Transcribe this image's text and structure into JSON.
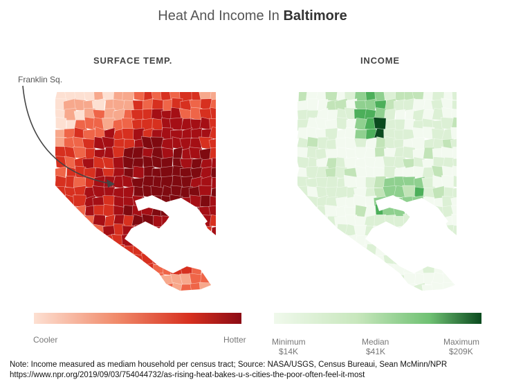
{
  "title": {
    "prefix": "Heat And Income In ",
    "city": "Baltimore"
  },
  "panels": {
    "temperature": {
      "title": "SURFACE TEMP."
    },
    "income": {
      "title": "INCOME"
    }
  },
  "annotation": {
    "label": "Franklin Sq."
  },
  "legend": {
    "temperature": {
      "low": "Cooler",
      "high": "Hotter"
    },
    "income": {
      "min_label": "Minimum",
      "min_value": "$14K",
      "median_label": "Median",
      "median_value": "$41K",
      "max_label": "Maximum",
      "max_value": "$209K"
    }
  },
  "colors": {
    "temp_scale": [
      "#fde0d2",
      "#f7a88c",
      "#ef6548",
      "#d7301f",
      "#a50f15",
      "#7f0a10"
    ],
    "income_scale": [
      "#f3faf0",
      "#dcf0d5",
      "#c2e4b8",
      "#8fd08f",
      "#4caf5a",
      "#0a4a1e"
    ],
    "water": "#ffffff"
  },
  "footer": {
    "note": "Note: Income measured as mediam household per census tract; Source: NASA/USGS, Census Bureaui, Sean McMinn/NPR",
    "url": "https://www.npr.org/2019/09/03/754044732/as-rising-heat-bakes-u-s-cities-the-poor-often-feel-it-most"
  }
}
